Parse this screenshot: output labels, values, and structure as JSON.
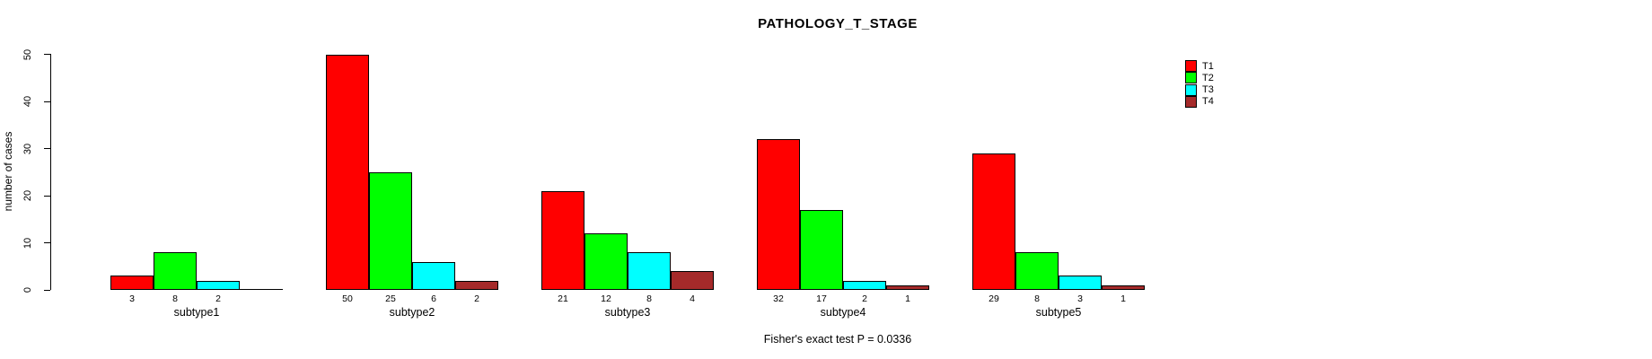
{
  "chart_data": {
    "type": "bar",
    "title": "PATHOLOGY_T_STAGE",
    "ylabel": "number of cases",
    "xlabel": "",
    "categories": [
      "subtype1",
      "subtype2",
      "subtype3",
      "subtype4",
      "subtype5"
    ],
    "series": [
      {
        "name": "T1",
        "color": "#FF0000",
        "values": [
          3,
          50,
          21,
          32,
          29
        ]
      },
      {
        "name": "T2",
        "color": "#00FF00",
        "values": [
          8,
          25,
          12,
          17,
          8
        ]
      },
      {
        "name": "T3",
        "color": "#00FFFF",
        "values": [
          2,
          6,
          8,
          2,
          3
        ]
      },
      {
        "name": "T4",
        "color": "#A52A2A",
        "values": [
          0,
          2,
          4,
          1,
          1
        ]
      }
    ],
    "bar_value_labels": [
      [
        "3",
        "8",
        "2",
        ""
      ],
      [
        "50",
        "25",
        "6",
        "2"
      ],
      [
        "21",
        "12",
        "8",
        "4"
      ],
      [
        "32",
        "17",
        "2",
        "1"
      ],
      [
        "29",
        "8",
        "3",
        "1"
      ]
    ],
    "ylim": [
      0,
      50
    ],
    "yticks": [
      0,
      10,
      20,
      30,
      40,
      50
    ],
    "grid": false,
    "legend_position": "right",
    "annotation": "Fisher's exact test P = 0.0336"
  }
}
